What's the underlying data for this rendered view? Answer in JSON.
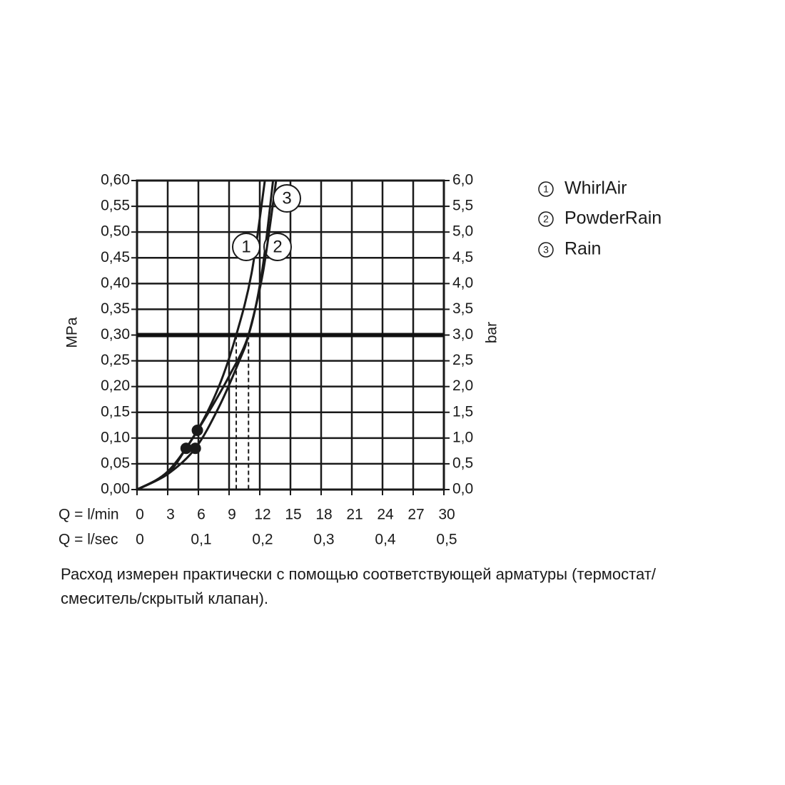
{
  "chart_data": {
    "type": "line",
    "y_label": "MPa",
    "y2_label": "bar",
    "x_label": "Q = l/min",
    "x2_label": "Q = l/sec",
    "xlim": [
      0,
      30
    ],
    "xticks": [
      0,
      3,
      6,
      9,
      12,
      15,
      18,
      21,
      24,
      27,
      30
    ],
    "x2lim": [
      0,
      0.5
    ],
    "x2ticks": [
      0,
      {
        "value": 0.1,
        "label": "0,1"
      },
      {
        "value": 0.2,
        "label": "0,2"
      },
      {
        "value": 0.3,
        "label": "0,3"
      },
      {
        "value": 0.4,
        "label": "0,4"
      },
      {
        "value": 0.5,
        "label": "0,5"
      }
    ],
    "ylim": [
      0,
      0.6
    ],
    "yticks": [
      {
        "value": 0,
        "label": "0,00"
      },
      {
        "value": 0.05,
        "label": "0,05"
      },
      {
        "value": 0.1,
        "label": "0,10"
      },
      {
        "value": 0.15,
        "label": "0,15"
      },
      {
        "value": 0.2,
        "label": "0,20"
      },
      {
        "value": 0.25,
        "label": "0,25"
      },
      {
        "value": 0.3,
        "label": "0,30"
      },
      {
        "value": 0.35,
        "label": "0,35"
      },
      {
        "value": 0.4,
        "label": "0,40"
      },
      {
        "value": 0.45,
        "label": "0,45"
      },
      {
        "value": 0.5,
        "label": "0,50"
      },
      {
        "value": 0.55,
        "label": "0,55"
      },
      {
        "value": 0.6,
        "label": "0,60"
      }
    ],
    "y2lim": [
      0,
      6
    ],
    "y2ticks": [
      {
        "value": 0,
        "label": "0,0"
      },
      {
        "value": 0.5,
        "label": "0,5"
      },
      {
        "value": 1,
        "label": "1,0"
      },
      {
        "value": 1.5,
        "label": "1,5"
      },
      {
        "value": 2,
        "label": "2,0"
      },
      {
        "value": 2.5,
        "label": "2,5"
      },
      {
        "value": 3,
        "label": "3,0"
      },
      {
        "value": 3.5,
        "label": "3,5"
      },
      {
        "value": 4,
        "label": "4,0"
      },
      {
        "value": 4.5,
        "label": "4,5"
      },
      {
        "value": 5,
        "label": "5,0"
      },
      {
        "value": 5.5,
        "label": "5,5"
      },
      {
        "value": 6,
        "label": "6,0"
      }
    ],
    "grid": true,
    "reference_y": 0.3,
    "flow_lines": [
      9.7,
      10.9
    ],
    "series": [
      {
        "name": "WhirlAir",
        "label": "1",
        "color": "#1a1a1a",
        "x": [
          0,
          3,
          5.9,
          8,
          9.7,
          11.2,
          12.5
        ],
        "y": [
          0,
          0.035,
          0.115,
          0.2,
          0.3,
          0.42,
          0.6
        ],
        "dot_x": 5.9,
        "dot_y": 0.115
      },
      {
        "name": "PowderRain",
        "label": "2",
        "color": "#1a1a1a",
        "x": [
          0,
          3,
          4.8,
          7,
          9,
          10.9,
          12.2,
          13.3
        ],
        "y": [
          0,
          0.032,
          0.08,
          0.15,
          0.22,
          0.3,
          0.42,
          0.6
        ],
        "dot_x": 4.8,
        "dot_y": 0.08
      },
      {
        "name": "Rain",
        "label": "3",
        "color": "#1a1a1a",
        "x": [
          0,
          3,
          5.7,
          8,
          10,
          10.9,
          12.3,
          13.6
        ],
        "y": [
          0,
          0.03,
          0.08,
          0.16,
          0.25,
          0.3,
          0.42,
          0.6
        ],
        "dot_x": 5.7,
        "dot_y": 0.08
      }
    ],
    "note_lines": [
      "Расход измерен практически с помощью соответствующей арматуры (термостат/",
      "смеситель/скрытый клапан)."
    ]
  }
}
